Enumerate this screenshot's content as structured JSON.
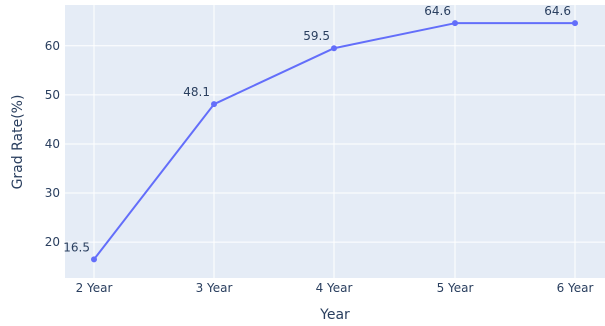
{
  "chart_data": {
    "type": "line",
    "categories": [
      "2 Year",
      "3 Year",
      "4 Year",
      "5 Year",
      "6 Year"
    ],
    "series": [
      {
        "values": [
          16.5,
          48.1,
          59.5,
          64.6,
          64.6
        ]
      }
    ],
    "data_labels": [
      "16.5",
      "48.1",
      "59.5",
      "64.6",
      "64.6"
    ],
    "xlabel": "Year",
    "ylabel": "Grad Rate(%)",
    "yticks": [
      20,
      30,
      40,
      50,
      60
    ],
    "ytick_labels": [
      "20",
      "30",
      "40",
      "50",
      "60"
    ],
    "ylim": [
      12.7,
      68.3
    ],
    "grid": true,
    "colors": {
      "plot_background": "#e5ecf6",
      "grid": "#ffffff",
      "line": "#636efa",
      "text": "#2a3f5f"
    }
  }
}
